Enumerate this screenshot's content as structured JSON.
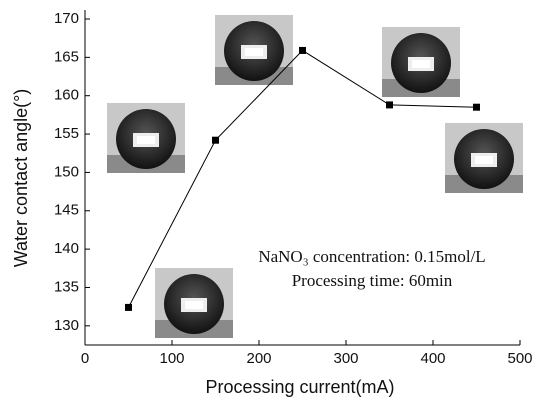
{
  "chart_data": {
    "type": "line",
    "x_label": "Processing current(mA)",
    "y_label": "Water contact angle(°)",
    "x": [
      50,
      150,
      250,
      350,
      450
    ],
    "series": [
      {
        "color": "#000000",
        "values": [
          132.4,
          154.2,
          165.9,
          158.8,
          158.5
        ]
      }
    ],
    "xlim": [
      0,
      500
    ],
    "xticks": [
      0,
      100,
      200,
      300,
      400,
      500
    ],
    "ylim": [
      127.5,
      170
    ],
    "yticks": [
      130,
      135,
      140,
      145,
      150,
      155,
      160,
      165,
      170
    ],
    "annotations": [
      "NaNO₃ concentration: 0.15mol/L",
      "Processing time: 60min"
    ]
  }
}
